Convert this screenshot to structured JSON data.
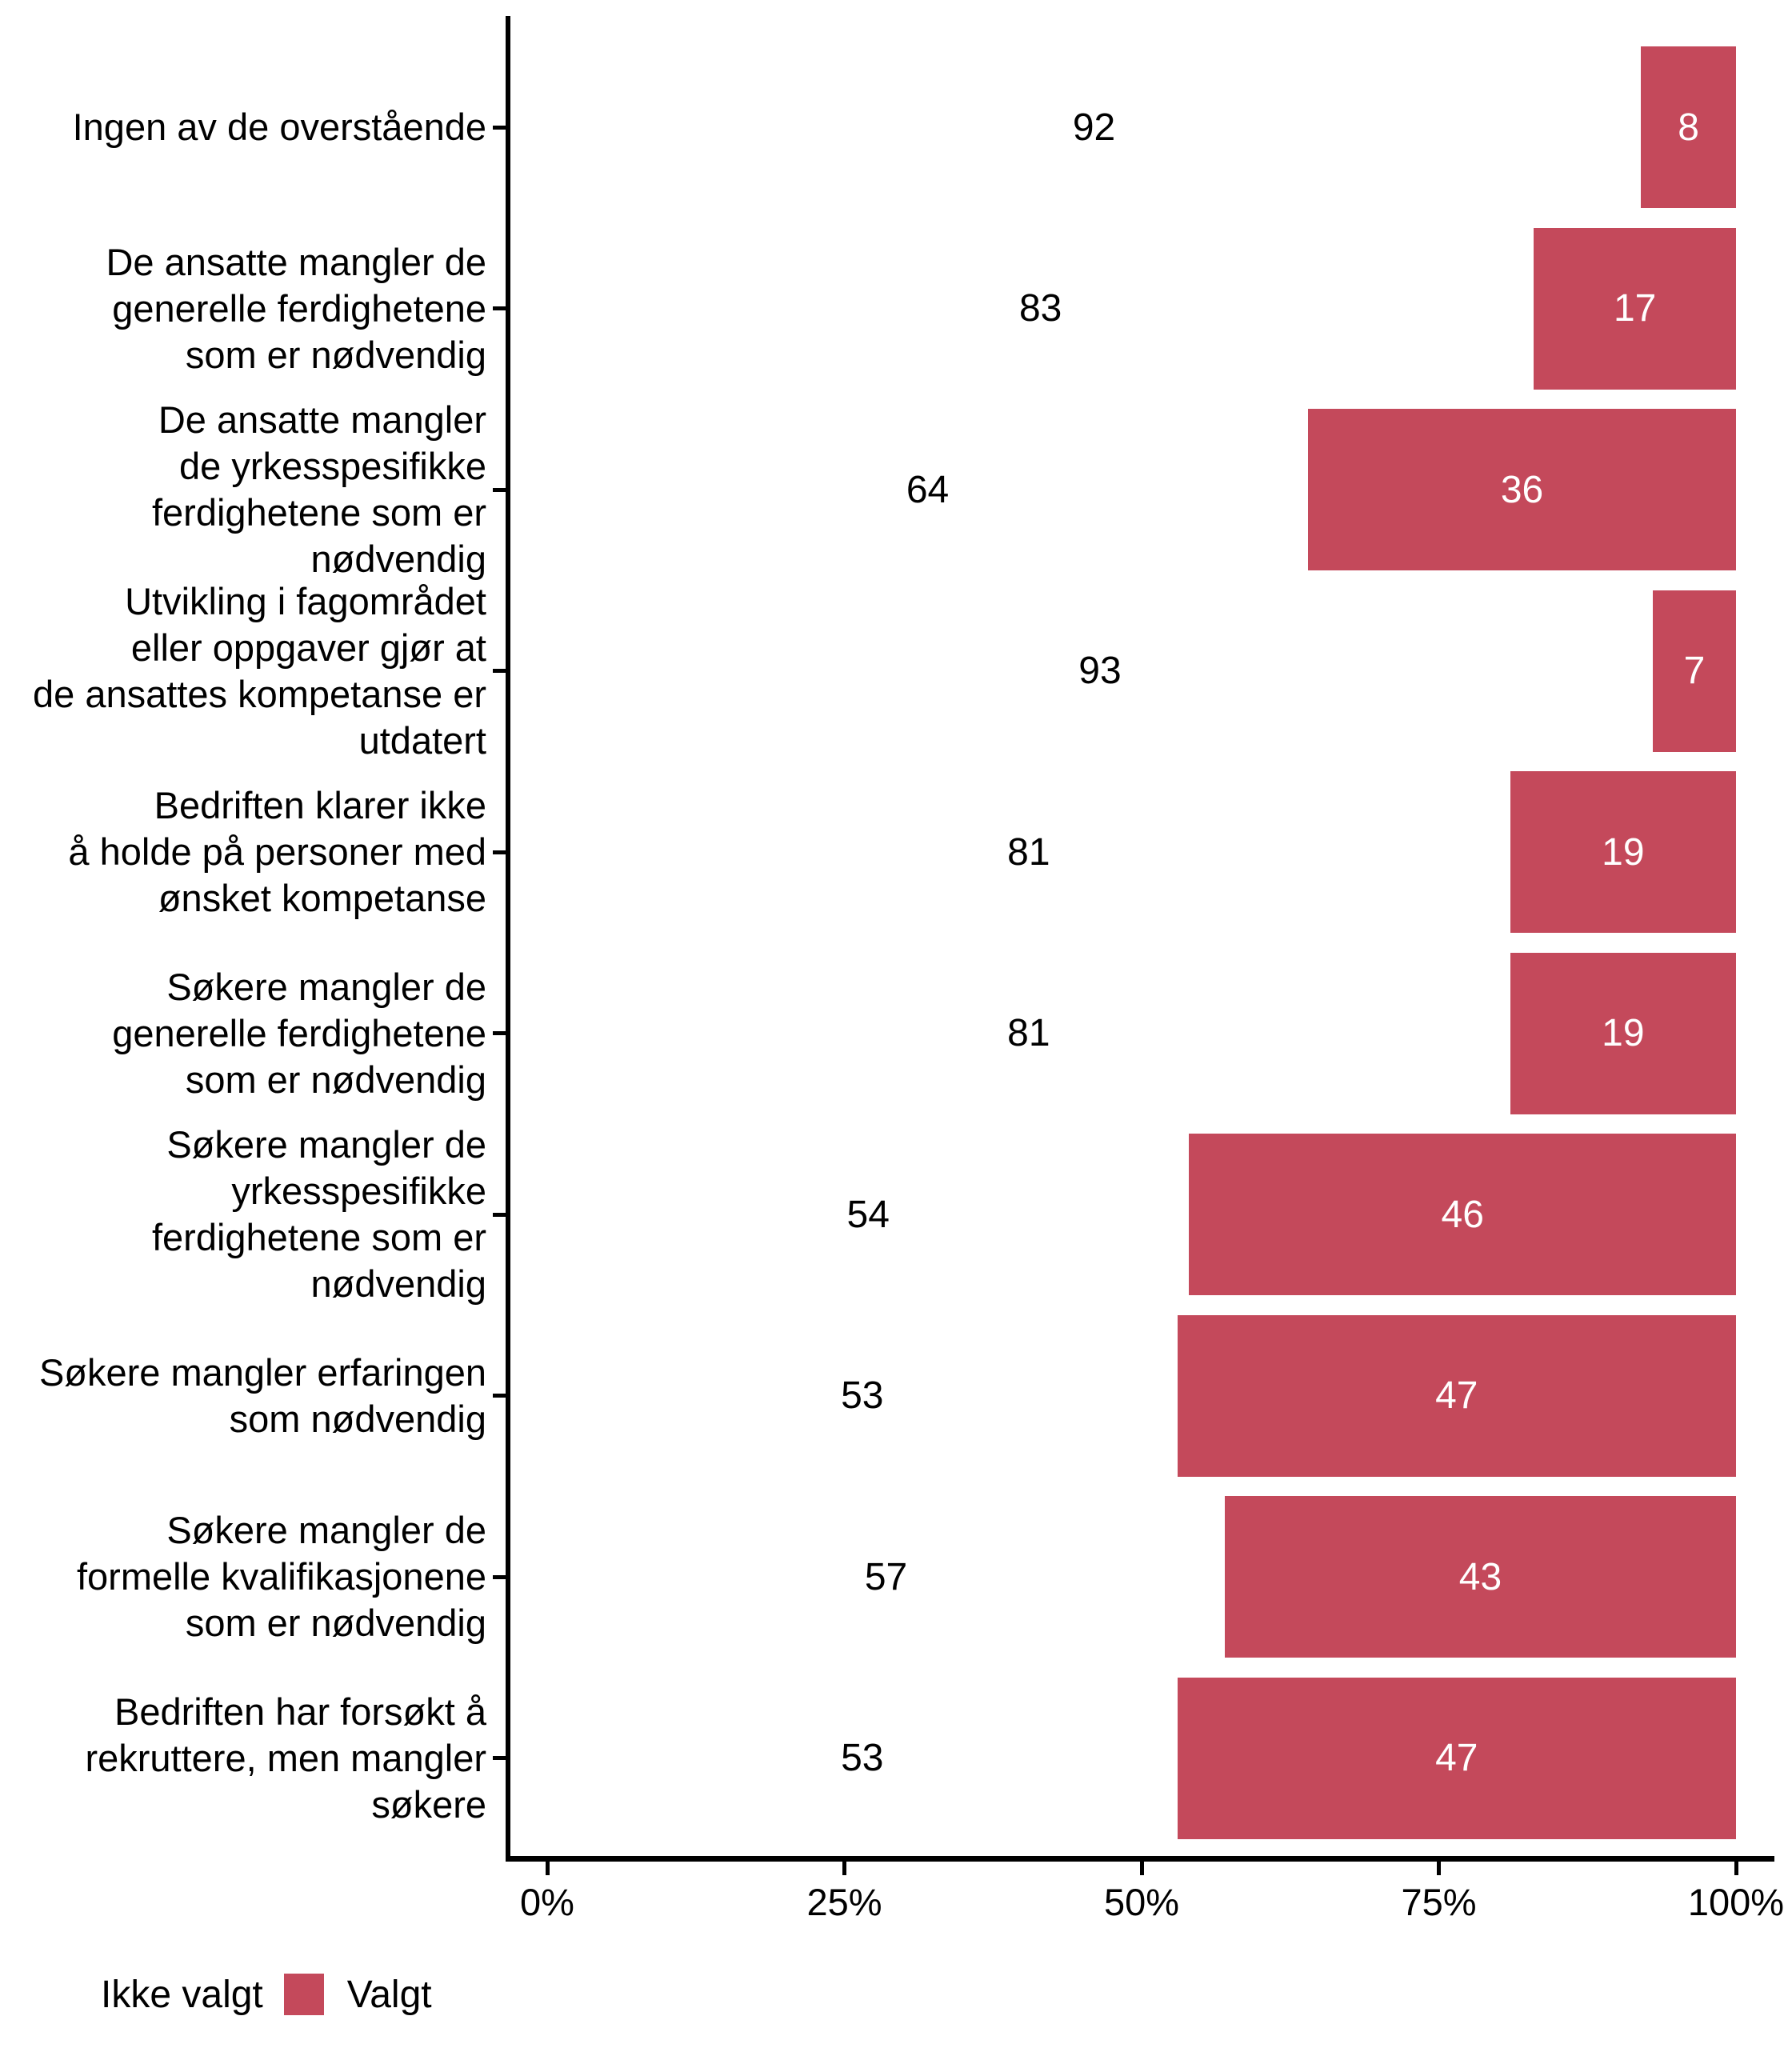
{
  "chart_data": {
    "type": "bar",
    "orientation": "horizontal",
    "stacked": true,
    "unit": "percent",
    "title": "",
    "xlabel": "",
    "ylabel": "",
    "xlim": [
      0,
      100
    ],
    "grid": false,
    "series_names": [
      "Ikke valgt",
      "Valgt"
    ],
    "categories": [
      {
        "label": "Ingen av de overstående",
        "lines": [
          "Ingen av de overstående"
        ],
        "ikke_valgt": 92,
        "valgt": 8
      },
      {
        "label": "De ansatte mangler de generelle ferdighetene som er nødvendig",
        "lines": [
          "De ansatte mangler de",
          "generelle ferdighetene",
          "som er nødvendig"
        ],
        "ikke_valgt": 83,
        "valgt": 17
      },
      {
        "label": "De ansatte mangler de yrkesspesifikke ferdighetene som er nødvendig",
        "lines": [
          "De ansatte mangler",
          "de yrkesspesifikke",
          "ferdighetene som er",
          "nødvendig"
        ],
        "ikke_valgt": 64,
        "valgt": 36
      },
      {
        "label": "Utvikling i fagområdet eller oppgaver gjør at de ansattes kompetanse er utdatert",
        "lines": [
          "Utvikling i fagområdet",
          "eller oppgaver gjør at",
          "de ansattes kompetanse er",
          "utdatert"
        ],
        "ikke_valgt": 93,
        "valgt": 7
      },
      {
        "label": "Bedriften klarer ikke å holde på personer med ønsket kompetanse",
        "lines": [
          "Bedriften klarer ikke",
          "å holde på personer med",
          "ønsket kompetanse"
        ],
        "ikke_valgt": 81,
        "valgt": 19
      },
      {
        "label": "Søkere mangler de generelle ferdighetene som er nødvendig",
        "lines": [
          "Søkere mangler de",
          "generelle ferdighetene",
          "som er nødvendig"
        ],
        "ikke_valgt": 81,
        "valgt": 19
      },
      {
        "label": "Søkere mangler de yrkesspesifikke ferdighetene som er nødvendig",
        "lines": [
          "Søkere mangler de",
          "yrkesspesifikke",
          "ferdighetene som er",
          "nødvendig"
        ],
        "ikke_valgt": 54,
        "valgt": 46
      },
      {
        "label": "Søkere mangler erfaringen som nødvendig",
        "lines": [
          "Søkere mangler erfaringen",
          "som nødvendig"
        ],
        "ikke_valgt": 53,
        "valgt": 47
      },
      {
        "label": "Søkere mangler de formelle kvalifikasjonene som er nødvendig",
        "lines": [
          "Søkere mangler de",
          "formelle kvalifikasjonene",
          "som er nødvendig"
        ],
        "ikke_valgt": 57,
        "valgt": 43
      },
      {
        "label": "Bedriften har forsøkt å rekruttere, men mangler søkere",
        "lines": [
          "Bedriften har forsøkt å",
          "rekruttere, men mangler",
          "søkere"
        ],
        "ikke_valgt": 53,
        "valgt": 47
      }
    ],
    "x_ticks": [
      "0%",
      "25%",
      "50%",
      "75%",
      "100%"
    ],
    "x_tick_values": [
      0,
      25,
      50,
      75,
      100
    ],
    "legend": {
      "position": "bottom-left",
      "items": [
        {
          "label": "Ikke valgt",
          "color": "#FFFFFF"
        },
        {
          "label": "Valgt",
          "color": "#C4495B"
        }
      ]
    },
    "colors": {
      "valgt": "#C4495B",
      "ikke_valgt": "#FFFFFF",
      "axis": "#000000",
      "label_on_valgt": "#FFFFFF",
      "label_on_ikke_valgt": "#000000"
    }
  }
}
